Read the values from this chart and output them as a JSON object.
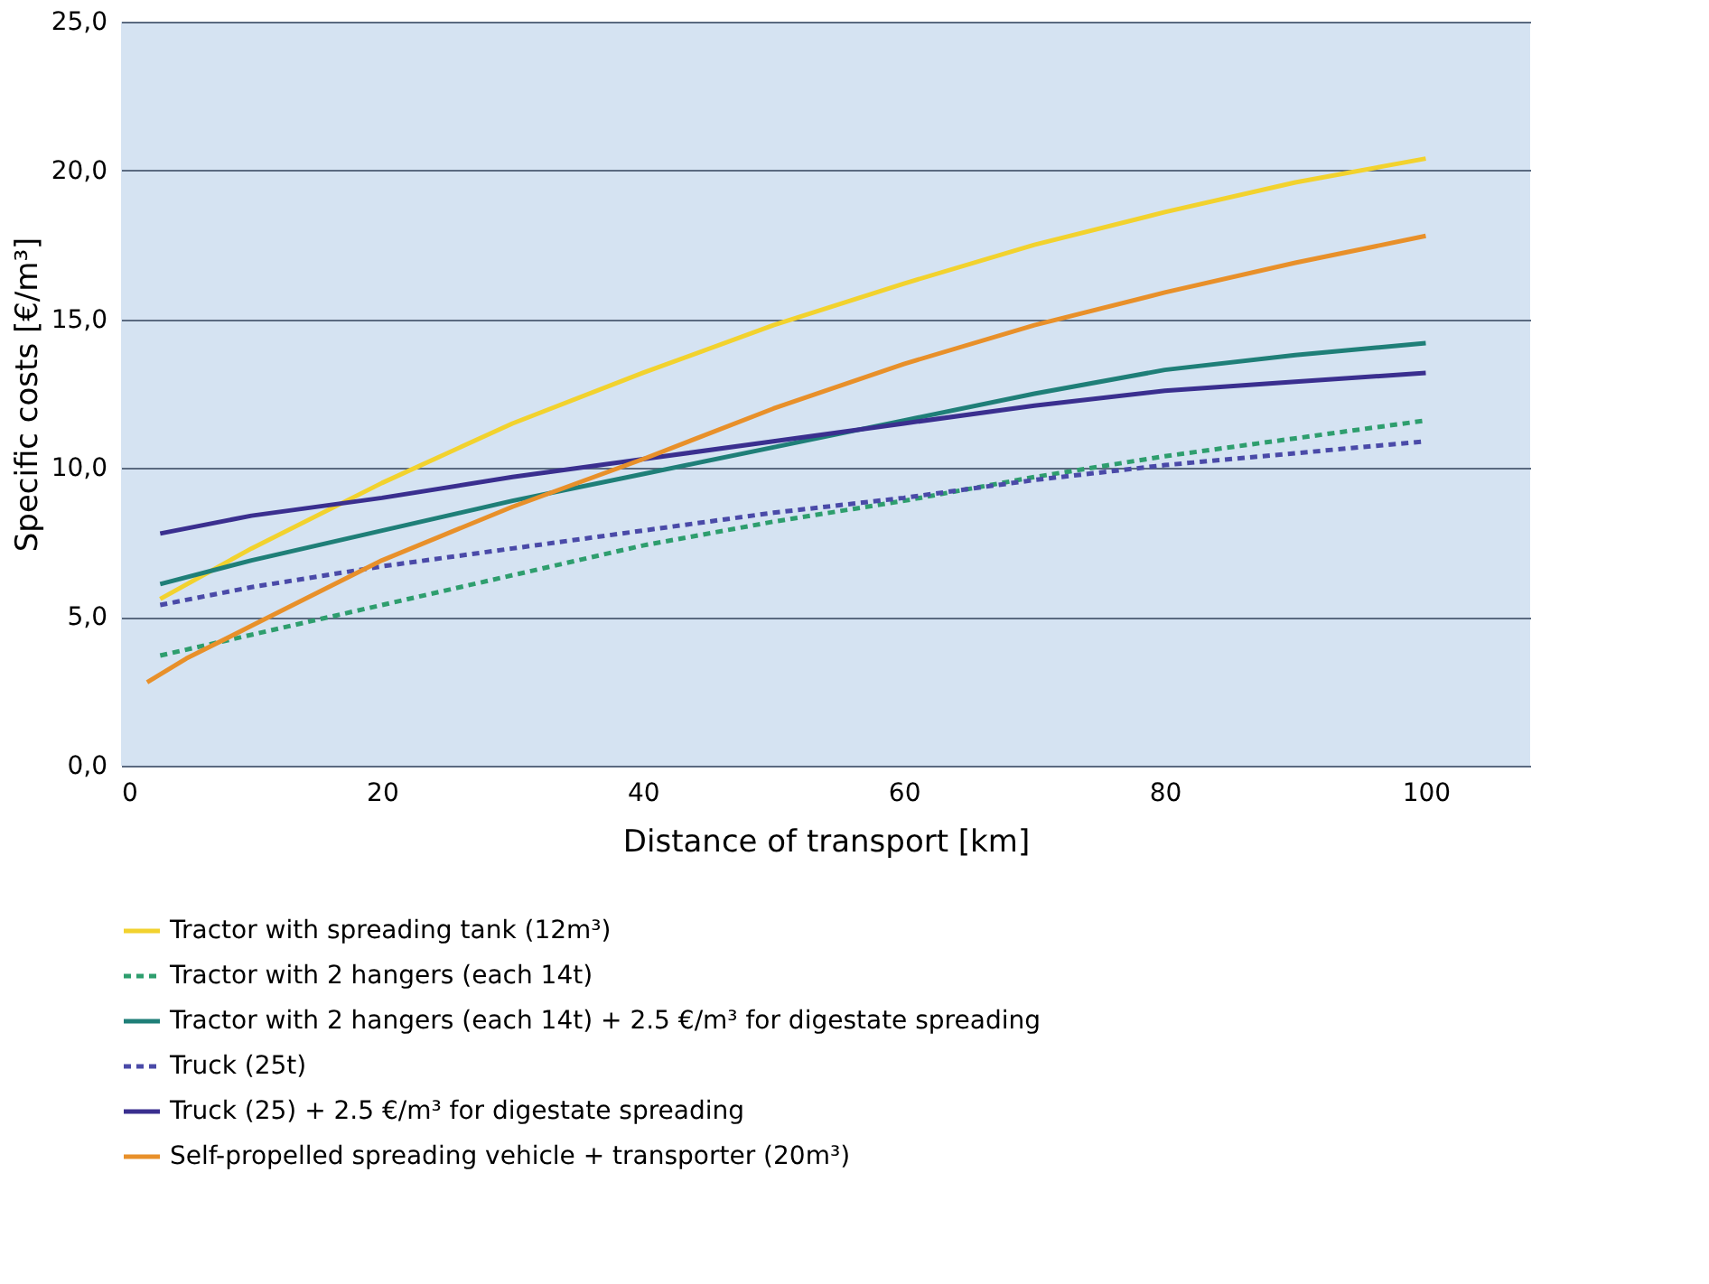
{
  "chart_data": {
    "type": "line",
    "xlabel": "Distance of transport [km]",
    "ylabel": "Specific costs [€/m³]",
    "xlim": [
      0,
      108
    ],
    "xticks": [
      0,
      20,
      40,
      60,
      80,
      100
    ],
    "ylim": [
      0,
      25
    ],
    "yticks": [
      {
        "value": 0,
        "label": "0,0"
      },
      {
        "value": 5,
        "label": "5,0"
      },
      {
        "value": 10,
        "label": "10,0"
      },
      {
        "value": 15,
        "label": "15,0"
      },
      {
        "value": 20,
        "label": "20,0"
      },
      {
        "value": 25,
        "label": "25,0"
      }
    ],
    "grid": "y",
    "legend": "bottom",
    "marker": "none",
    "series": [
      {
        "name": "Tractor with spreading tank (12m³)",
        "color": "#f2d22e",
        "line_style": "solid",
        "x": [
          3,
          10,
          20,
          30,
          40,
          50,
          60,
          70,
          80,
          90,
          100
        ],
        "values": [
          5.6,
          7.3,
          9.5,
          11.5,
          13.2,
          14.8,
          16.2,
          17.5,
          18.6,
          19.6,
          20.4
        ]
      },
      {
        "name": "Tractor with 2 hangers (each 14t)",
        "color": "#2e9e6e",
        "line_style": "dashed",
        "x": [
          3,
          10,
          20,
          30,
          40,
          50,
          60,
          70,
          80,
          90,
          100
        ],
        "values": [
          3.7,
          4.4,
          5.4,
          6.4,
          7.4,
          8.2,
          8.9,
          9.7,
          10.4,
          11.0,
          11.6
        ]
      },
      {
        "name": "Tractor with 2 hangers (each 14t) + 2.5 €/m³ for digestate spreading",
        "color": "#1f7f78",
        "line_style": "solid",
        "x": [
          3,
          10,
          20,
          30,
          40,
          50,
          60,
          70,
          80,
          90,
          100
        ],
        "values": [
          6.1,
          6.9,
          7.9,
          8.9,
          9.8,
          10.7,
          11.6,
          12.5,
          13.3,
          13.8,
          14.2
        ]
      },
      {
        "name": "Truck (25t)",
        "color": "#4a4aa8",
        "line_style": "dashed",
        "x": [
          3,
          10,
          20,
          30,
          40,
          50,
          60,
          70,
          80,
          90,
          100
        ],
        "values": [
          5.4,
          6.0,
          6.7,
          7.3,
          7.9,
          8.5,
          9.0,
          9.6,
          10.1,
          10.5,
          10.9
        ]
      },
      {
        "name": "Truck (25) + 2.5 €/m³ for digestate spreading",
        "color": "#3a2f8f",
        "line_style": "solid",
        "x": [
          3,
          10,
          20,
          30,
          40,
          50,
          60,
          70,
          80,
          90,
          100
        ],
        "values": [
          7.8,
          8.4,
          9.0,
          9.7,
          10.3,
          10.9,
          11.5,
          12.1,
          12.6,
          12.9,
          13.2
        ]
      },
      {
        "name": "Self-propelled spreading vehicle + transporter (20m³)",
        "color": "#e8902a",
        "line_style": "solid",
        "x": [
          2,
          5,
          10,
          20,
          30,
          40,
          50,
          60,
          70,
          80,
          90,
          100
        ],
        "values": [
          2.8,
          3.6,
          4.7,
          6.9,
          8.7,
          10.3,
          12.0,
          13.5,
          14.8,
          15.9,
          16.9,
          17.8
        ]
      }
    ]
  }
}
